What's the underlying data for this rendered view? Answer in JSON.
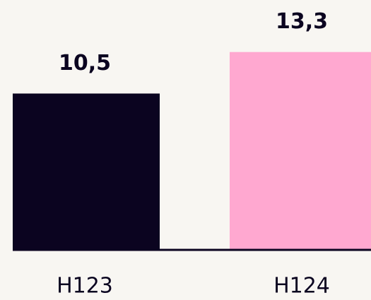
{
  "chart_data": {
    "type": "bar",
    "categories": [
      "H123",
      "H124"
    ],
    "values": [
      10.5,
      13.3
    ],
    "value_labels": [
      "10,5",
      "13,3"
    ],
    "colors": [
      "#0b0420",
      "#ffa8d0"
    ]
  }
}
